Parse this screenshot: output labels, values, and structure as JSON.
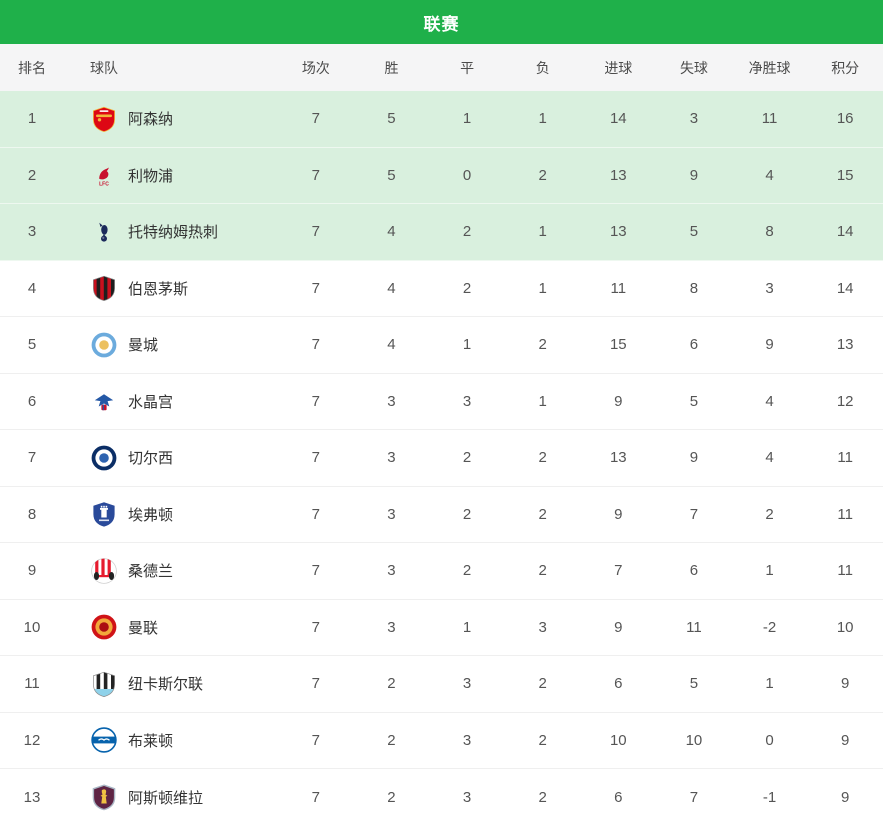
{
  "header": {
    "title": "联赛"
  },
  "theme": {
    "header_bg": "#1fb04a",
    "header_text": "#ffffff",
    "header_row_bg": "#f5f5f6",
    "row_bg": "#ffffff",
    "highlight_row_bg": "#d9f0de",
    "text_primary": "#333333",
    "text_secondary": "#555555"
  },
  "table": {
    "columns": [
      {
        "key": "rank",
        "label": "排名"
      },
      {
        "key": "team",
        "label": "球队"
      },
      {
        "key": "played",
        "label": "场次"
      },
      {
        "key": "win",
        "label": "胜"
      },
      {
        "key": "draw",
        "label": "平"
      },
      {
        "key": "loss",
        "label": "负"
      },
      {
        "key": "gf",
        "label": "进球"
      },
      {
        "key": "ga",
        "label": "失球"
      },
      {
        "key": "gd",
        "label": "净胜球"
      },
      {
        "key": "pts",
        "label": "积分"
      }
    ],
    "rows": [
      {
        "rank": 1,
        "team": "阿森纳",
        "icon": "arsenal-crest-icon",
        "logo": {
          "shape": "shield-cannon",
          "colors": [
            "#dd0714",
            "#f2b43a",
            "#ffffff"
          ]
        },
        "highlight": true,
        "played": 7,
        "win": 5,
        "draw": 1,
        "loss": 1,
        "gf": 14,
        "ga": 3,
        "gd": 11,
        "pts": 16
      },
      {
        "rank": 2,
        "team": "利物浦",
        "icon": "liverpool-crest-icon",
        "logo": {
          "shape": "liver-bird",
          "colors": [
            "#c8102e"
          ]
        },
        "highlight": true,
        "played": 7,
        "win": 5,
        "draw": 0,
        "loss": 2,
        "gf": 13,
        "ga": 9,
        "gd": 4,
        "pts": 15
      },
      {
        "rank": 3,
        "team": "托特纳姆热刺",
        "icon": "tottenham-crest-icon",
        "logo": {
          "shape": "cockerel-ball",
          "colors": [
            "#1b2a5b"
          ]
        },
        "highlight": true,
        "played": 7,
        "win": 4,
        "draw": 2,
        "loss": 1,
        "gf": 13,
        "ga": 5,
        "gd": 8,
        "pts": 14
      },
      {
        "rank": 4,
        "team": "伯恩茅斯",
        "icon": "bournemouth-crest-icon",
        "logo": {
          "shape": "shield-stripes",
          "colors": [
            "#c8101e",
            "#1e1e1e"
          ]
        },
        "highlight": false,
        "played": 7,
        "win": 4,
        "draw": 2,
        "loss": 1,
        "gf": 11,
        "ga": 8,
        "gd": 3,
        "pts": 14
      },
      {
        "rank": 5,
        "team": "曼城",
        "icon": "man-city-crest-icon",
        "logo": {
          "shape": "rings",
          "colors": [
            "#6cabdd",
            "#ffffff",
            "#ecc05e"
          ]
        },
        "highlight": false,
        "played": 7,
        "win": 4,
        "draw": 1,
        "loss": 2,
        "gf": 15,
        "ga": 6,
        "gd": 9,
        "pts": 13
      },
      {
        "rank": 6,
        "team": "水晶宫",
        "icon": "crystal-palace-crest-icon",
        "logo": {
          "shape": "eagle",
          "colors": [
            "#2458a6",
            "#c4122e"
          ]
        },
        "highlight": false,
        "played": 7,
        "win": 3,
        "draw": 3,
        "loss": 1,
        "gf": 9,
        "ga": 5,
        "gd": 4,
        "pts": 12
      },
      {
        "rank": 7,
        "team": "切尔西",
        "icon": "chelsea-crest-icon",
        "logo": {
          "shape": "rings",
          "colors": [
            "#0b2e66",
            "#ffffff",
            "#2e63b0"
          ]
        },
        "highlight": false,
        "played": 7,
        "win": 3,
        "draw": 2,
        "loss": 2,
        "gf": 13,
        "ga": 9,
        "gd": 4,
        "pts": 11
      },
      {
        "rank": 8,
        "team": "埃弗顿",
        "icon": "everton-crest-icon",
        "logo": {
          "shape": "shield-tower",
          "colors": [
            "#2a4a9a",
            "#ffffff"
          ]
        },
        "highlight": false,
        "played": 7,
        "win": 3,
        "draw": 2,
        "loss": 2,
        "gf": 9,
        "ga": 7,
        "gd": 2,
        "pts": 11
      },
      {
        "rank": 9,
        "team": "桑德兰",
        "icon": "sunderland-crest-icon",
        "logo": {
          "shape": "striped-circle",
          "colors": [
            "#ffffff",
            "#e61b2e",
            "#222222"
          ]
        },
        "highlight": false,
        "played": 7,
        "win": 3,
        "draw": 2,
        "loss": 2,
        "gf": 7,
        "ga": 6,
        "gd": 1,
        "pts": 11
      },
      {
        "rank": 10,
        "team": "曼联",
        "icon": "man-united-crest-icon",
        "logo": {
          "shape": "rings",
          "colors": [
            "#d01317",
            "#f2a83b",
            "#ab0d12"
          ]
        },
        "highlight": false,
        "played": 7,
        "win": 3,
        "draw": 1,
        "loss": 3,
        "gf": 9,
        "ga": 11,
        "gd": -2,
        "pts": 10
      },
      {
        "rank": 11,
        "team": "纽卡斯尔联",
        "icon": "newcastle-crest-icon",
        "logo": {
          "shape": "shield-stripes",
          "colors": [
            "#ffffff",
            "#232323",
            "#8fd2ea"
          ]
        },
        "highlight": false,
        "played": 7,
        "win": 2,
        "draw": 3,
        "loss": 2,
        "gf": 6,
        "ga": 5,
        "gd": 1,
        "pts": 9
      },
      {
        "rank": 12,
        "team": "布莱顿",
        "icon": "brighton-crest-icon",
        "logo": {
          "shape": "circle-band",
          "colors": [
            "#ffffff",
            "#0763ad"
          ]
        },
        "highlight": false,
        "played": 7,
        "win": 2,
        "draw": 3,
        "loss": 2,
        "gf": 10,
        "ga": 10,
        "gd": 0,
        "pts": 9
      },
      {
        "rank": 13,
        "team": "阿斯顿维拉",
        "icon": "aston-villa-crest-icon",
        "logo": {
          "shape": "shield-lion",
          "colors": [
            "#5e2444",
            "#f0c243",
            "#a9b6c4"
          ]
        },
        "highlight": false,
        "played": 7,
        "win": 2,
        "draw": 3,
        "loss": 2,
        "gf": 6,
        "ga": 7,
        "gd": -1,
        "pts": 9
      }
    ]
  }
}
